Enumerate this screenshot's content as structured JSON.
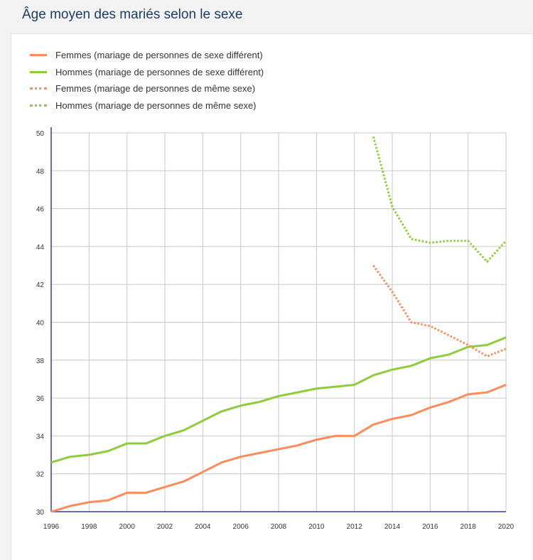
{
  "header": {
    "title": "Âge moyen des mariés selon le sexe"
  },
  "chart_data": {
    "type": "line",
    "title": "Âge moyen des mariés selon le sexe",
    "xlabel": "",
    "ylabel": "",
    "xlim": [
      1996,
      2020
    ],
    "ylim": [
      30,
      50
    ],
    "x_ticks": [
      "1996",
      "1998",
      "2000",
      "2002",
      "2004",
      "2006",
      "2008",
      "2010",
      "2012",
      "2014",
      "2016",
      "2018",
      "2020"
    ],
    "y_ticks": [
      "30",
      "32",
      "34",
      "36",
      "38",
      "40",
      "42",
      "44",
      "46",
      "48",
      "50"
    ],
    "grid": true,
    "legend_placement": "top-left",
    "series": [
      {
        "name": "Femmes (mariage de personnes de sexe différent)",
        "color": "#ff8c5a",
        "style": "solid",
        "x": [
          1996,
          1997,
          1998,
          1999,
          2000,
          2001,
          2002,
          2003,
          2004,
          2005,
          2006,
          2007,
          2008,
          2009,
          2010,
          2011,
          2012,
          2013,
          2014,
          2015,
          2016,
          2017,
          2018,
          2019,
          2020
        ],
        "values": [
          30.0,
          30.3,
          30.5,
          30.6,
          31.0,
          31.0,
          31.3,
          31.6,
          32.1,
          32.6,
          32.9,
          33.1,
          33.3,
          33.5,
          33.8,
          34.0,
          34.0,
          34.6,
          34.9,
          35.1,
          35.5,
          35.8,
          36.2,
          36.3,
          36.7
        ]
      },
      {
        "name": "Hommes (mariage de personnes de sexe différent)",
        "color": "#8fcc3c",
        "style": "solid",
        "x": [
          1996,
          1997,
          1998,
          1999,
          2000,
          2001,
          2002,
          2003,
          2004,
          2005,
          2006,
          2007,
          2008,
          2009,
          2010,
          2011,
          2012,
          2013,
          2014,
          2015,
          2016,
          2017,
          2018,
          2019,
          2020
        ],
        "values": [
          32.6,
          32.9,
          33.0,
          33.2,
          33.6,
          33.6,
          34.0,
          34.3,
          34.8,
          35.3,
          35.6,
          35.8,
          36.1,
          36.3,
          36.5,
          36.6,
          36.7,
          37.2,
          37.5,
          37.7,
          38.1,
          38.3,
          38.7,
          38.8,
          39.2
        ]
      },
      {
        "name": "Femmes (mariage de personnes de même sexe)",
        "color": "#ff8c5a",
        "style": "dotted",
        "x": [
          2013,
          2014,
          2015,
          2016,
          2017,
          2018,
          2019,
          2020
        ],
        "values": [
          43.0,
          41.6,
          40.0,
          39.8,
          39.3,
          38.8,
          38.2,
          38.6
        ]
      },
      {
        "name": "Hommes (mariage de personnes de même sexe)",
        "color": "#8fcc3c",
        "style": "dotted",
        "x": [
          2013,
          2014,
          2015,
          2016,
          2017,
          2018,
          2019,
          2020
        ],
        "values": [
          49.8,
          46.1,
          44.4,
          44.2,
          44.3,
          44.3,
          43.2,
          44.3
        ]
      }
    ]
  }
}
